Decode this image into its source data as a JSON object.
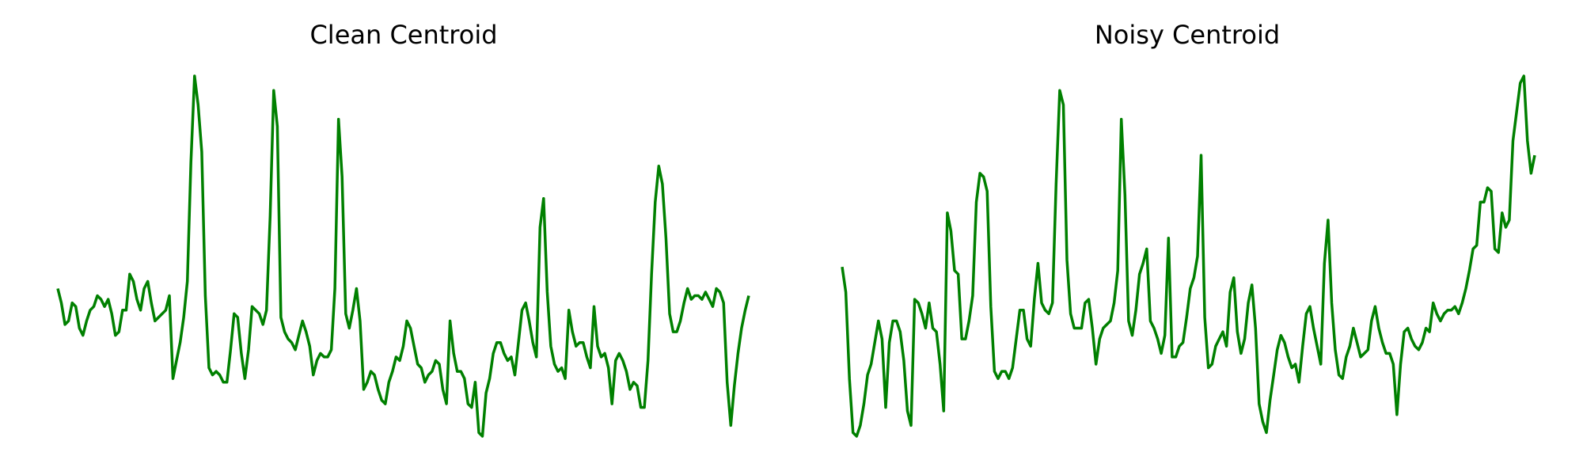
{
  "chart_data": [
    {
      "type": "line",
      "title": "Clean Centroid",
      "color": "#008000",
      "values": [
        41,
        37,
        31,
        32,
        37,
        36,
        30,
        28,
        32,
        35,
        36,
        39,
        38,
        36,
        38,
        34,
        28,
        29,
        35,
        35,
        45,
        43,
        38,
        35,
        41,
        43,
        37,
        32,
        33,
        34,
        35,
        39,
        16,
        21,
        26,
        33,
        43,
        76,
        100,
        92,
        79,
        39,
        19,
        17,
        18,
        17,
        15,
        15,
        24,
        34,
        33,
        23,
        16,
        24,
        36,
        35,
        34,
        31,
        35,
        61,
        96,
        86,
        33,
        29,
        27,
        26,
        24,
        28,
        32,
        29,
        25,
        17,
        21,
        23,
        22,
        22,
        24,
        41,
        88,
        72,
        34,
        30,
        35,
        41,
        32,
        13,
        15,
        18,
        17,
        13,
        10,
        9,
        15,
        18,
        22,
        21,
        25,
        32,
        30,
        25,
        20,
        19,
        15,
        17,
        18,
        21,
        20,
        13,
        9,
        32,
        23,
        18,
        18,
        16,
        9,
        8,
        15,
        1,
        0,
        12,
        16,
        23,
        26,
        26,
        23,
        21,
        22,
        17,
        26,
        35,
        37,
        32,
        26,
        22,
        58,
        66,
        40,
        25,
        20,
        18,
        19,
        16,
        35,
        29,
        25,
        26,
        26,
        22,
        19,
        36,
        25,
        22,
        23,
        19,
        9,
        21,
        23,
        21,
        18,
        13,
        15,
        14,
        8,
        8,
        21,
        45,
        65,
        75,
        70,
        55,
        34,
        29,
        29,
        32,
        37,
        41,
        38,
        39,
        39,
        38,
        40,
        38,
        36,
        41,
        40,
        37,
        15,
        3,
        14,
        23,
        30,
        35,
        39
      ]
    },
    {
      "type": "line",
      "title": "Noisy Centroid",
      "color": "#008000",
      "values": [
        47,
        40,
        16,
        1,
        0,
        3,
        9,
        17,
        20,
        26,
        32,
        27,
        8,
        26,
        32,
        32,
        29,
        21,
        7,
        3,
        38,
        37,
        34,
        30,
        37,
        30,
        29,
        20,
        7,
        62,
        57,
        46,
        45,
        27,
        27,
        32,
        39,
        65,
        73,
        72,
        68,
        36,
        18,
        16,
        18,
        18,
        16,
        19,
        27,
        35,
        35,
        27,
        25,
        38,
        48,
        37,
        35,
        34,
        37,
        70,
        96,
        92,
        49,
        34,
        30,
        30,
        30,
        37,
        38,
        30,
        20,
        27,
        30,
        31,
        32,
        37,
        46,
        88,
        67,
        32,
        28,
        35,
        45,
        48,
        52,
        32,
        30,
        27,
        23,
        28,
        55,
        22,
        22,
        25,
        26,
        33,
        41,
        44,
        50,
        78,
        33,
        19,
        20,
        25,
        27,
        29,
        25,
        40,
        44,
        29,
        23,
        27,
        37,
        42,
        30,
        9,
        4,
        1,
        10,
        17,
        24,
        28,
        26,
        22,
        19,
        20,
        15,
        25,
        34,
        36,
        30,
        25,
        20,
        48,
        60,
        37,
        24,
        17,
        16,
        22,
        25,
        30,
        26,
        22,
        23,
        24,
        32,
        36,
        30,
        26,
        23,
        23,
        20,
        6,
        20,
        29,
        30,
        27,
        25,
        24,
        26,
        30,
        29,
        37,
        34,
        32,
        34,
        35,
        35,
        36,
        34,
        37,
        41,
        46,
        52,
        53,
        65,
        65,
        69,
        68,
        52,
        51,
        62,
        58,
        60,
        82,
        90,
        98,
        100,
        82,
        73,
        78
      ]
    }
  ]
}
